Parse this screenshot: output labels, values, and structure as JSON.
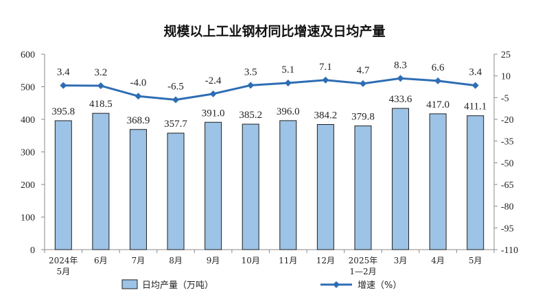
{
  "chart_data": {
    "type": "bar",
    "title": "规模以上工业钢材同比增速及日均产量",
    "categories": [
      [
        "2024年",
        "5月"
      ],
      [
        "6月"
      ],
      [
        "7月"
      ],
      [
        "8月"
      ],
      [
        "9月"
      ],
      [
        "10月"
      ],
      [
        "11月"
      ],
      [
        "12月"
      ],
      [
        "2025年",
        "1—2月"
      ],
      [
        "3月"
      ],
      [
        "4月"
      ],
      [
        "5月"
      ]
    ],
    "series": [
      {
        "name": "日均产量（万吨）",
        "type": "bar",
        "axis": "left",
        "values": [
          395.8,
          418.5,
          368.9,
          357.7,
          391.0,
          385.2,
          396.0,
          384.2,
          379.8,
          433.6,
          417.0,
          411.1
        ],
        "labels": [
          "395.8",
          "418.5",
          "368.9",
          "357.7",
          "391.0",
          "385.2",
          "396.0",
          "384.2",
          "379.8",
          "433.6",
          "417.0",
          "411.1"
        ],
        "color": "#9dc3e6"
      },
      {
        "name": "增速（%）",
        "type": "line",
        "axis": "right",
        "values": [
          3.4,
          3.2,
          -4.0,
          -6.5,
          -2.4,
          3.5,
          5.1,
          7.1,
          4.7,
          8.3,
          6.6,
          3.4
        ],
        "labels": [
          "3.4",
          "3.2",
          "-4.0",
          "-6.5",
          "-2.4",
          "3.5",
          "5.1",
          "7.1",
          "4.7",
          "8.3",
          "6.6",
          "3.4"
        ],
        "color": "#2e6db4"
      }
    ],
    "y_left": {
      "ylim": [
        0,
        600
      ],
      "ticks": [
        0,
        100,
        200,
        300,
        400,
        500,
        600
      ]
    },
    "y_right": {
      "ylim": [
        -110,
        25
      ],
      "ticks": [
        25,
        10,
        -5,
        -20,
        -35,
        -50,
        -65,
        -80,
        -95,
        -110
      ]
    },
    "legend": {
      "placement": "bottom"
    },
    "grid": false,
    "colors": {
      "bar_fill": "#9dc3e6",
      "bar_stroke": "#1f1f1f",
      "line": "#2e6db4",
      "axis": "#888888"
    }
  }
}
